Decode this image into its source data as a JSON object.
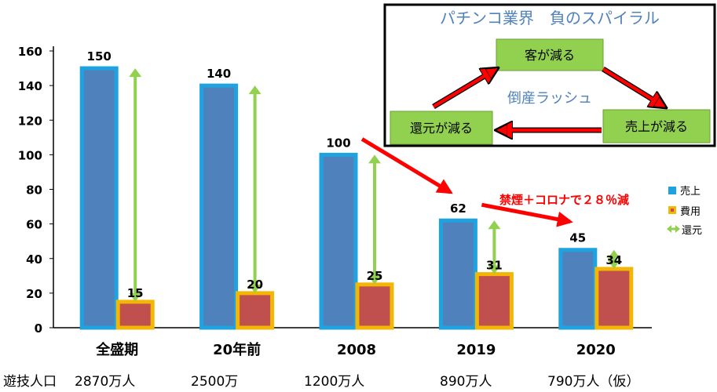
{
  "chart_data": {
    "type": "bar",
    "categories": [
      "全盛期",
      "20年前",
      "2008",
      "2019",
      "2020"
    ],
    "series": [
      {
        "name": "売上",
        "values": [
          150,
          140,
          100,
          62,
          45
        ]
      },
      {
        "name": "費用",
        "values": [
          15,
          20,
          25,
          31,
          34
        ]
      }
    ],
    "legend": [
      {
        "name": "売上",
        "marker": "square",
        "color": "#1fa3e0"
      },
      {
        "name": "費用",
        "marker": "square",
        "color": "#f2b705"
      },
      {
        "name": "還元",
        "marker": "double-arrow",
        "color": "#92d050"
      }
    ],
    "return_arrows": "還元 = 売上 − 費用 (double arrow between the two values in each category)",
    "y_ticks": [
      0,
      20,
      40,
      60,
      80,
      100,
      120,
      140,
      160
    ],
    "ylim": [
      0,
      160
    ],
    "grid": false,
    "legend_position": "right",
    "annotation": "禁煙＋コロナで２８％減",
    "trend_arrows": [
      {
        "from_category": "2008",
        "to_category": "2019"
      },
      {
        "from_category": "2019",
        "to_category": "2020"
      }
    ],
    "colors": {
      "sales_fill": "#4f81bd",
      "sales_border": "#1fa3e0",
      "cost_fill": "#c0504d",
      "cost_border": "#f2b705",
      "return_arrow": "#92d050",
      "trend_arrow": "#ff0000"
    }
  },
  "players_row": {
    "label": "遊技人口",
    "values": [
      "2870万人",
      "2500万",
      "1200万人",
      "890万人",
      "790万人（仮）"
    ]
  },
  "inset": {
    "title": "パチンコ業界　負のスパイラル",
    "top_box": "客が減る",
    "left_box": "還元が減る",
    "right_box": "売上が減る",
    "center": "倒産ラッシュ",
    "colors": {
      "box_fill": "#92d050",
      "title": "#4f81bd",
      "arrow": "#ff0000",
      "border": "#000000"
    }
  }
}
